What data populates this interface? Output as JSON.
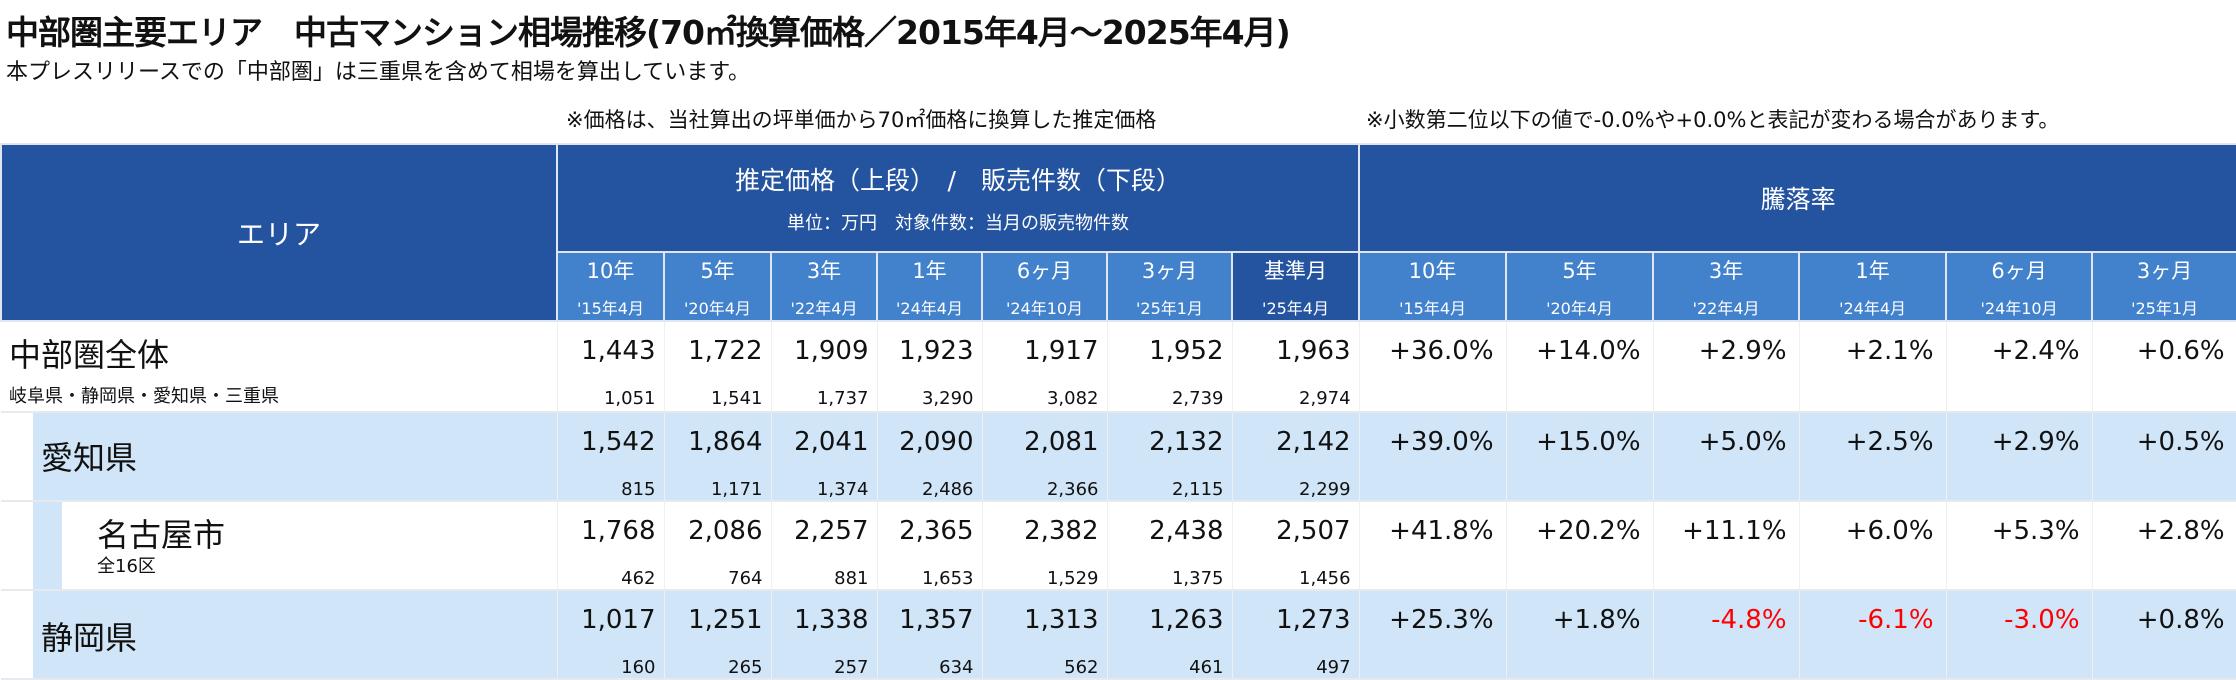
{
  "title": "中部圏主要エリア　中古マンション相場推移(70㎡換算価格／2015年4月～2025年4月)",
  "subtitle": "本プレスリリースでの「中部圏」は三重県を含めて相場を算出しています。",
  "note_price": "※価格は、当社算出の坪単価から70㎡価格に換算した推定価格",
  "note_rate": "※小数第二位以下の値で-0.0%や+0.0%と表記が変わる場合があります。",
  "header": {
    "area": "エリア",
    "price_group": "推定価格（上段）　/　販売件数（下段）",
    "price_unit": "単位：万円　対象件数：当月の販売物件数",
    "rate_group": "騰落率",
    "price_cols": [
      {
        "a": "10年",
        "b": "'15年4月"
      },
      {
        "a": "5年",
        "b": "'20年4月"
      },
      {
        "a": "3年",
        "b": "'22年4月"
      },
      {
        "a": "1年",
        "b": "'24年4月"
      },
      {
        "a": "6ヶ月",
        "b": "'24年10月"
      },
      {
        "a": "3ヶ月",
        "b": "'25年1月"
      },
      {
        "a": "基準月",
        "b": "'25年4月"
      }
    ],
    "rate_cols": [
      {
        "a": "10年",
        "b": "'15年4月"
      },
      {
        "a": "5年",
        "b": "'20年4月"
      },
      {
        "a": "3年",
        "b": "'22年4月"
      },
      {
        "a": "1年",
        "b": "'24年4月"
      },
      {
        "a": "6ヶ月",
        "b": "'24年10月"
      },
      {
        "a": "3ヶ月",
        "b": "'25年1月"
      }
    ]
  },
  "rows": [
    {
      "name": "中部圏全体",
      "sub": "岐阜県・静岡県・愛知県・三重県",
      "prices": [
        "1,443",
        "1,722",
        "1,909",
        "1,923",
        "1,917",
        "1,952",
        "1,963"
      ],
      "counts": [
        "1,051",
        "1,541",
        "1,737",
        "3,290",
        "3,082",
        "2,739",
        "2,974"
      ],
      "rates": [
        "+36.0%",
        "+14.0%",
        "+2.9%",
        "+2.1%",
        "+2.4%",
        "+0.6%"
      ]
    },
    {
      "name": "愛知県",
      "sub": "",
      "prices": [
        "1,542",
        "1,864",
        "2,041",
        "2,090",
        "2,081",
        "2,132",
        "2,142"
      ],
      "counts": [
        "815",
        "1,171",
        "1,374",
        "2,486",
        "2,366",
        "2,115",
        "2,299"
      ],
      "rates": [
        "+39.0%",
        "+15.0%",
        "+5.0%",
        "+2.5%",
        "+2.9%",
        "+0.5%"
      ]
    },
    {
      "name": "名古屋市",
      "sub": "全16区",
      "prices": [
        "1,768",
        "2,086",
        "2,257",
        "2,365",
        "2,382",
        "2,438",
        "2,507"
      ],
      "counts": [
        "462",
        "764",
        "881",
        "1,653",
        "1,529",
        "1,375",
        "1,456"
      ],
      "rates": [
        "+41.8%",
        "+20.2%",
        "+11.1%",
        "+6.0%",
        "+5.3%",
        "+2.8%"
      ]
    },
    {
      "name": "静岡県",
      "sub": "",
      "prices": [
        "1,017",
        "1,251",
        "1,338",
        "1,357",
        "1,313",
        "1,263",
        "1,273"
      ],
      "counts": [
        "160",
        "265",
        "257",
        "634",
        "562",
        "461",
        "497"
      ],
      "rates": [
        "+25.3%",
        "+1.8%",
        "-4.8%",
        "-6.1%",
        "-3.0%",
        "+0.8%"
      ]
    }
  ],
  "colors": {
    "header_dark": "#2453a0",
    "header_light": "#4281cc",
    "row_highlight": "#d0e5f7",
    "negative": "#ff0000"
  }
}
